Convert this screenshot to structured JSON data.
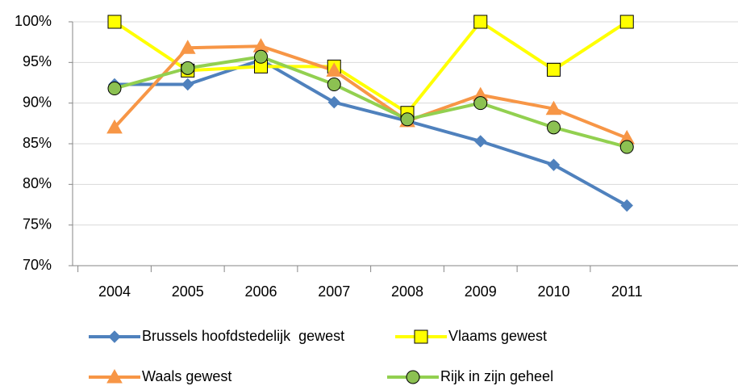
{
  "chart_data": {
    "type": "line",
    "categories": [
      "2004",
      "2005",
      "2006",
      "2007",
      "2008",
      "2009",
      "2010",
      "2011"
    ],
    "series": [
      {
        "name": "Brussels hoofdstedelijk  gewest",
        "color": "#4f81bd",
        "marker": "diamond",
        "marker_fill": "#4f81bd",
        "values": [
          92.3,
          92.3,
          95.3,
          90.1,
          87.8,
          85.3,
          82.4,
          77.4
        ]
      },
      {
        "name": "Vlaams gewest",
        "color": "#ffff00",
        "marker": "square",
        "marker_fill": "#ffff00",
        "values": [
          100,
          94,
          94.5,
          94.5,
          88.8,
          100,
          94.1,
          100
        ]
      },
      {
        "name": "Waals gewest",
        "color": "#f79646",
        "marker": "triangle",
        "marker_fill": "#f79646",
        "values": [
          87,
          96.8,
          97,
          94,
          87.8,
          91,
          89.3,
          85.7
        ]
      },
      {
        "name": "Rijk in zijn geheel",
        "color": "#92d050",
        "marker": "circle",
        "marker_fill": "#8cc152",
        "values": [
          91.8,
          94.3,
          95.7,
          92.3,
          88,
          90,
          87,
          84.6
        ]
      }
    ],
    "ylim": [
      70,
      100
    ],
    "yticks": [
      {
        "value": 70,
        "label": "70%"
      },
      {
        "value": 75,
        "label": "75%"
      },
      {
        "value": 80,
        "label": "80%"
      },
      {
        "value": 85,
        "label": "85%"
      },
      {
        "value": 90,
        "label": "90%"
      },
      {
        "value": 95,
        "label": "95%"
      },
      {
        "value": 100,
        "label": "100%"
      }
    ],
    "grid": true
  }
}
